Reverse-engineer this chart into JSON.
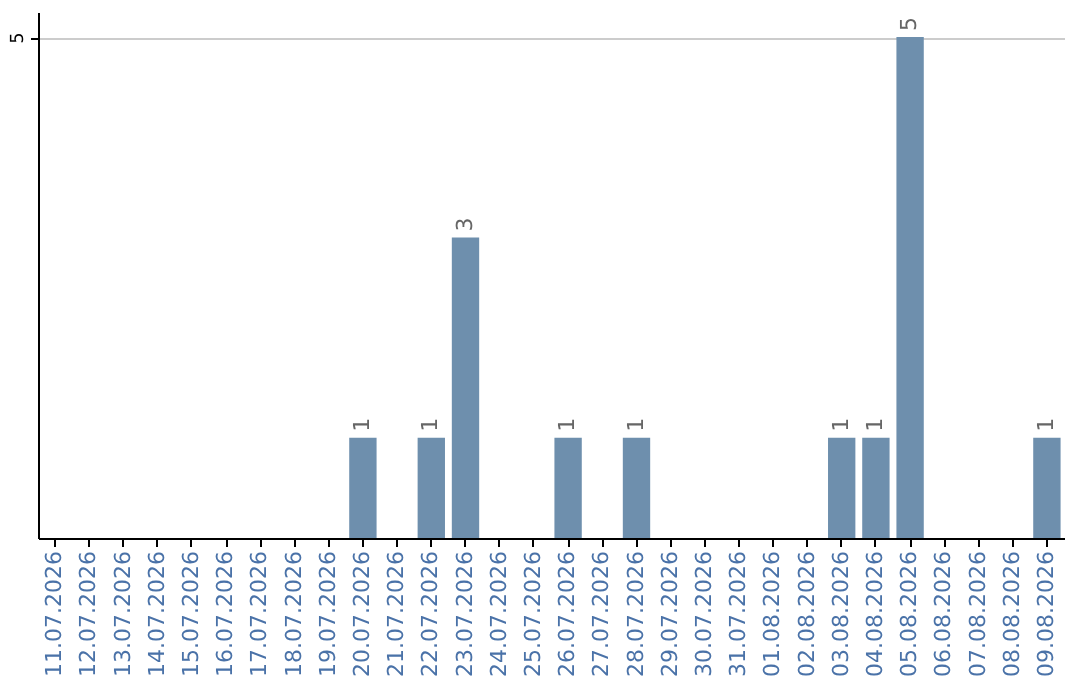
{
  "chart_data": {
    "type": "bar",
    "categories": [
      "11.07.2026",
      "12.07.2026",
      "13.07.2026",
      "14.07.2026",
      "15.07.2026",
      "16.07.2026",
      "17.07.2026",
      "18.07.2026",
      "19.07.2026",
      "20.07.2026",
      "21.07.2026",
      "22.07.2026",
      "23.07.2026",
      "24.07.2026",
      "25.07.2026",
      "26.07.2026",
      "27.07.2026",
      "28.07.2026",
      "29.07.2026",
      "30.07.2026",
      "31.07.2026",
      "01.08.2026",
      "02.08.2026",
      "03.08.2026",
      "04.08.2026",
      "05.08.2026",
      "06.08.2026",
      "07.08.2026",
      "08.08.2026",
      "09.08.2026"
    ],
    "values": [
      0,
      0,
      0,
      0,
      0,
      0,
      0,
      0,
      0,
      1,
      0,
      1,
      3,
      0,
      0,
      1,
      0,
      1,
      0,
      0,
      0,
      0,
      0,
      1,
      1,
      5,
      0,
      0,
      0,
      1
    ],
    "value_labels": [
      null,
      null,
      null,
      null,
      null,
      null,
      null,
      null,
      null,
      "1",
      null,
      "1",
      "3",
      null,
      null,
      "1",
      null,
      "1",
      null,
      null,
      null,
      null,
      null,
      "1",
      "1",
      "5",
      null,
      null,
      null,
      "1"
    ],
    "color": "#6e8fad",
    "ylim": [
      0,
      5.25
    ],
    "yticks": [
      5
    ],
    "grid": "y"
  }
}
